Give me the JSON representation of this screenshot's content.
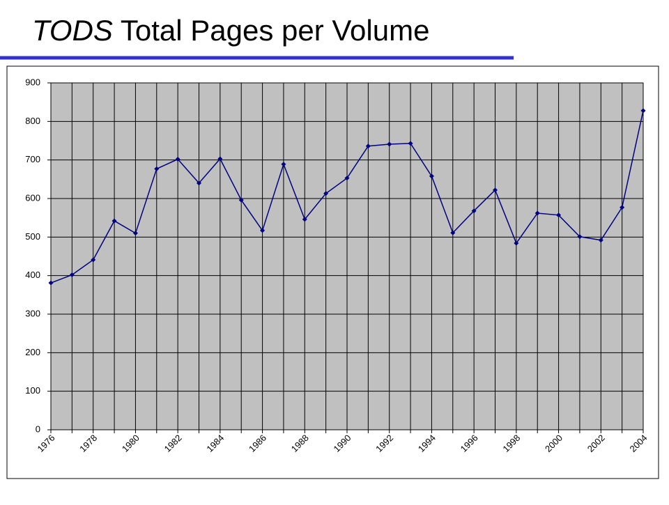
{
  "chart_data": {
    "type": "line",
    "title_italic": "TODS",
    "title": "Total Pages per Volume",
    "categories": [
      "1976",
      null,
      "1978",
      null,
      "1980",
      null,
      "1982",
      null,
      "1984",
      null,
      "1986",
      null,
      "1988",
      null,
      "1990",
      null,
      "1992",
      null,
      "1994",
      null,
      "1996",
      null,
      "1998",
      null,
      "2000",
      null,
      "2002",
      null,
      "2004"
    ],
    "series": [
      {
        "color": "#000080",
        "values": [
          381,
          402,
          441,
          542,
          510,
          677,
          702,
          640,
          703,
          596,
          517,
          689,
          546,
          613,
          653,
          736,
          741,
          743,
          658,
          511,
          568,
          622,
          484,
          562,
          557,
          501,
          492,
          577,
          828
        ]
      }
    ],
    "ylim": [
      0,
      900
    ],
    "yticks": [
      0,
      100,
      200,
      300,
      400,
      500,
      600,
      700,
      800,
      900
    ],
    "grid": true
  }
}
